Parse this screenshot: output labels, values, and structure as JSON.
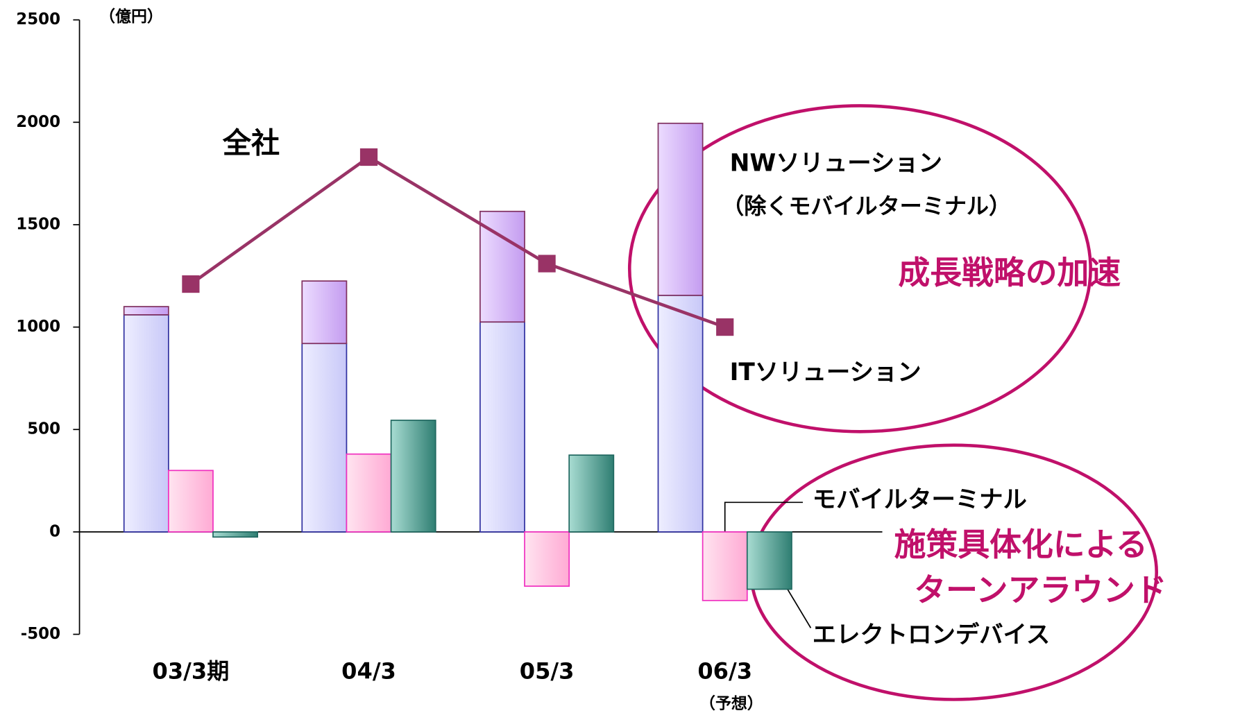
{
  "chart_data": {
    "type": "bar",
    "unit_label": "（億円）",
    "categories": [
      "03/3期",
      "04/3",
      "05/3",
      "06/3"
    ],
    "category_notes": [
      null,
      null,
      null,
      "（予想）"
    ],
    "ylim": [
      -500,
      2500
    ],
    "yticks": [
      -500,
      0,
      500,
      1000,
      1500,
      2000,
      2500
    ],
    "series": [
      {
        "name": "ITソリューション",
        "color": "#dcdcfc",
        "stroke": "#3030a0",
        "stack": true,
        "values": [
          1060,
          920,
          1025,
          1155
        ]
      },
      {
        "name": "NWソリューション",
        "subname": "（除くモバイルターミナル）",
        "color": "#d6b4f8",
        "stroke": "#803060",
        "stack": true,
        "values": [
          40,
          305,
          540,
          840
        ]
      },
      {
        "name": "モバイルターミナル",
        "color": "#ffc4e0",
        "stroke": "#f030c0",
        "values": [
          300,
          380,
          -265,
          -335
        ]
      },
      {
        "name": "エレクトロンデバイス",
        "color": "#5fb0a2",
        "stroke": "#206860",
        "values": [
          -25,
          545,
          375,
          -280
        ]
      },
      {
        "name": "全社",
        "type": "line",
        "color": "#993366",
        "values": [
          1210,
          1830,
          1310,
          1000
        ]
      }
    ],
    "annotations": [
      "成長戦略の加速",
      "施策具体化による",
      "ターンアラウンド"
    ]
  }
}
